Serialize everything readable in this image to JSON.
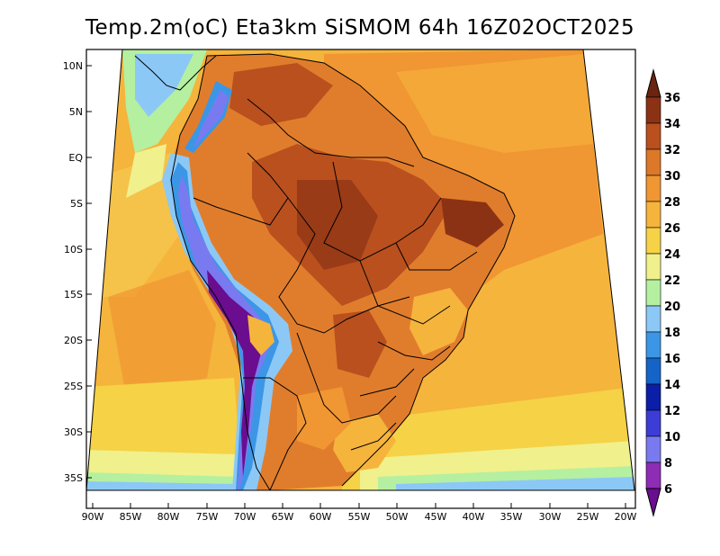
{
  "title": "Temp.2m(oC) Eta3km SiSMOM 64h 16Z02OCT2025",
  "map": {
    "variable": "Temp.2m",
    "units": "oC",
    "lat_labels": [
      "10N",
      "5N",
      "EQ",
      "5S",
      "10S",
      "15S",
      "20S",
      "25S",
      "30S",
      "35S"
    ],
    "lat_values": [
      10,
      5,
      0,
      -5,
      -10,
      -15,
      -20,
      -25,
      -30,
      -35
    ],
    "lon_labels": [
      "90W",
      "85W",
      "80W",
      "75W",
      "70W",
      "65W",
      "60W",
      "55W",
      "50W",
      "45W",
      "40W",
      "35W",
      "30W",
      "25W",
      "20W"
    ],
    "lon_values": [
      -90,
      -85,
      -80,
      -75,
      -70,
      -65,
      -60,
      -55,
      -50,
      -45,
      -40,
      -35,
      -30,
      -25,
      -20
    ]
  },
  "colorbar": {
    "labels": [
      "36",
      "34",
      "32",
      "30",
      "28",
      "26",
      "24",
      "22",
      "20",
      "18",
      "16",
      "14",
      "12",
      "10",
      "8",
      "6"
    ],
    "levels": [
      6,
      8,
      10,
      12,
      14,
      16,
      18,
      20,
      22,
      24,
      26,
      28,
      30,
      32,
      34,
      36
    ],
    "colors": [
      "#6a0d8f",
      "#8e2cb6",
      "#7a7af0",
      "#3c3cd6",
      "#0a1ea8",
      "#1464c8",
      "#3c96e6",
      "#8cc8f5",
      "#b4f0a0",
      "#f0f08c",
      "#f5d246",
      "#f5b43c",
      "#f09632",
      "#dc7828",
      "#b9501e",
      "#8c3214",
      "#6a2410"
    ]
  }
}
